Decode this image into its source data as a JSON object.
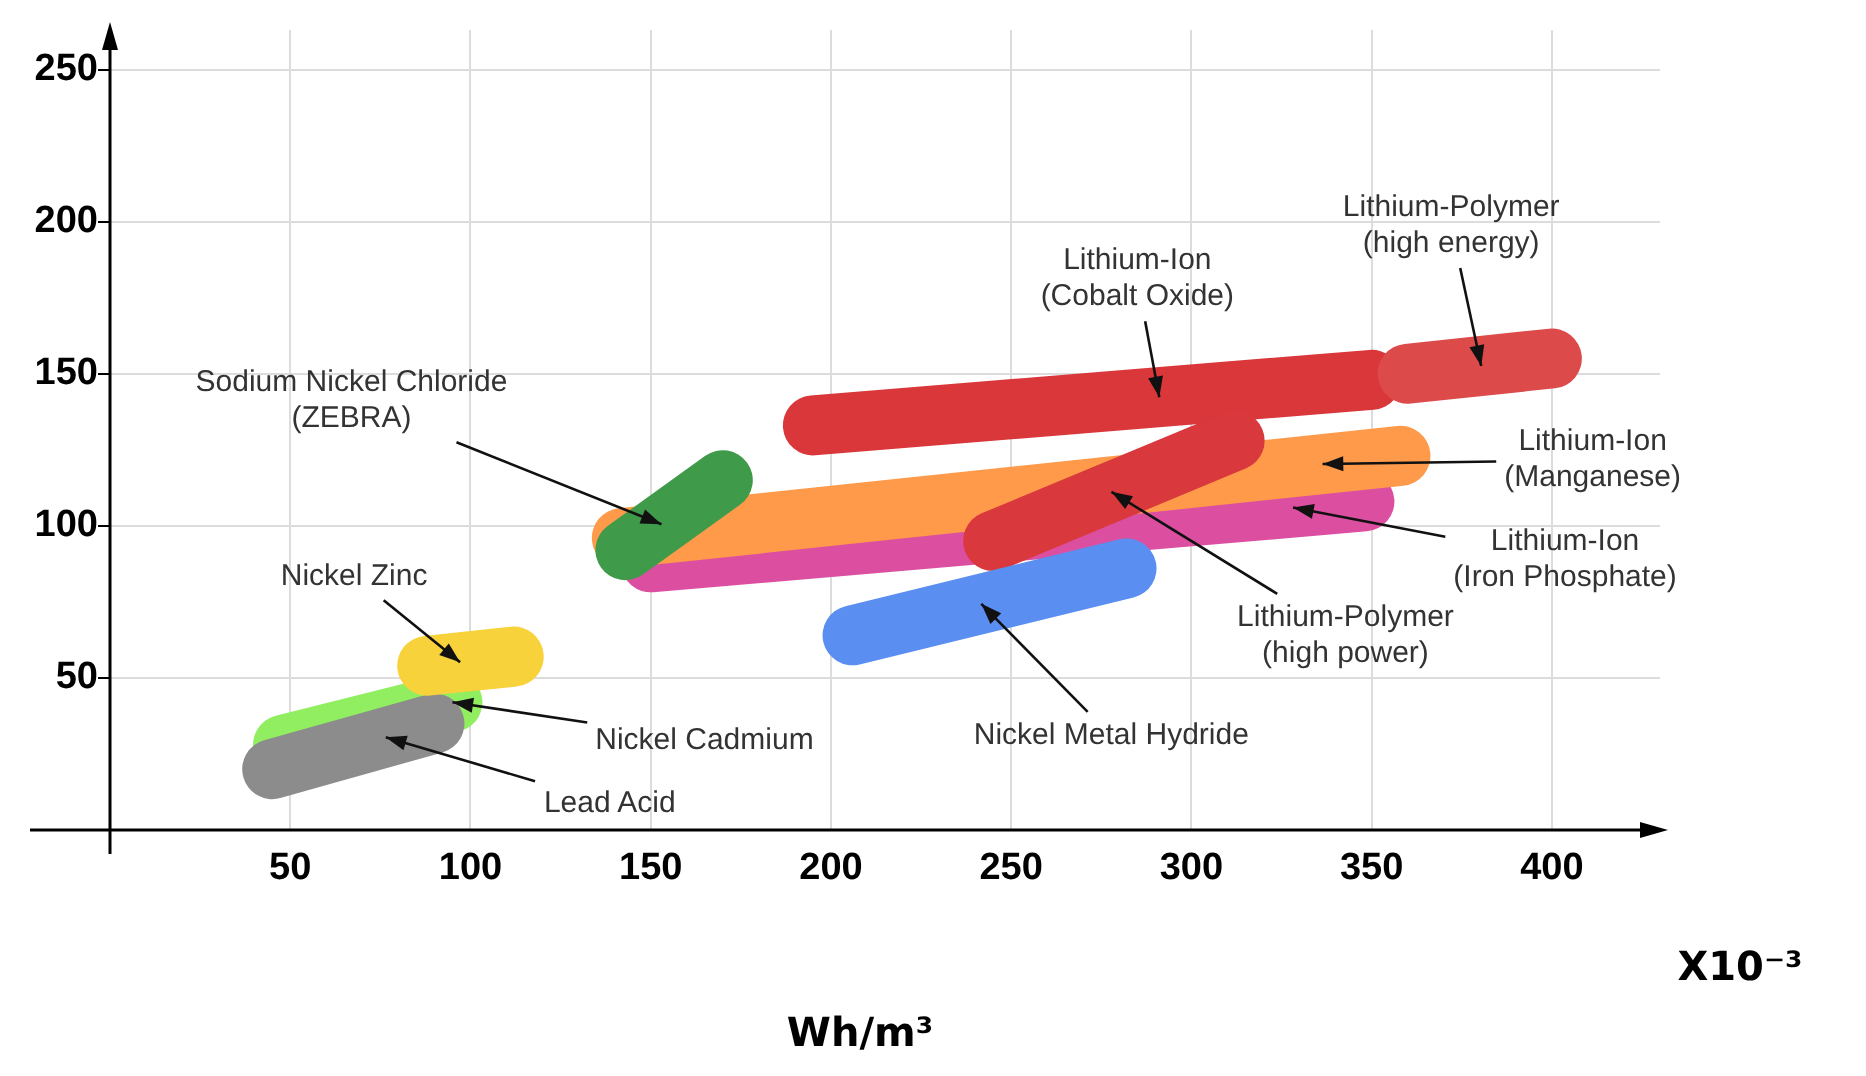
{
  "chart_data": {
    "type": "line",
    "xlabel": "Wh/m³",
    "annotations": [
      "X10⁻³"
    ],
    "xlim": [
      0,
      430
    ],
    "xticks": [
      50,
      100,
      150,
      200,
      250,
      300,
      350,
      400
    ],
    "ylim": [
      0,
      263
    ],
    "yticks": [
      50,
      100,
      150,
      200,
      250
    ],
    "grid": true,
    "legend": false,
    "series": [
      {
        "name": "Lithium-Ion\n(Iron Phosphate)",
        "color": "#dc4fa0",
        "x": [
          150,
          348
        ],
        "values": [
          88,
          108
        ]
      },
      {
        "name": "Lithium-Ion\n(Manganese)",
        "color": "#ff9a4a",
        "x": [
          142,
          358
        ],
        "values": [
          96,
          123
        ]
      },
      {
        "name": "Lithium-Ion\n(Cobalt Oxide)",
        "color": "#d9373a",
        "x": [
          195,
          350
        ],
        "values": [
          133,
          148
        ]
      },
      {
        "name": "Lithium-Polymer\n(high energy)",
        "color": "#dc4a4a",
        "x": [
          360,
          400
        ],
        "values": [
          150,
          155
        ]
      },
      {
        "name": "Sodium Nickel Chloride\n(ZEBRA)",
        "color": "#3f9a4a",
        "x": [
          143,
          170
        ],
        "values": [
          92,
          115
        ]
      },
      {
        "name": "Lithium-Polymer\n(high power)",
        "color": "#d9383d",
        "x": [
          245,
          312
        ],
        "values": [
          95,
          128
        ]
      },
      {
        "name": "Nickel Metal Hydride",
        "color": "#5a8ef0",
        "x": [
          206,
          282
        ],
        "values": [
          64,
          86
        ]
      },
      {
        "name": "Nickel Cadmium",
        "color": "#90ee60",
        "x": [
          48,
          95
        ],
        "values": [
          28,
          42
        ]
      },
      {
        "name": "Lead Acid",
        "color": "#8c8c8c",
        "x": [
          45,
          90
        ],
        "values": [
          20,
          35
        ]
      },
      {
        "name": "Nickel Zinc",
        "color": "#f7d23a",
        "x": [
          88,
          112
        ],
        "values": [
          54,
          57
        ]
      }
    ]
  }
}
